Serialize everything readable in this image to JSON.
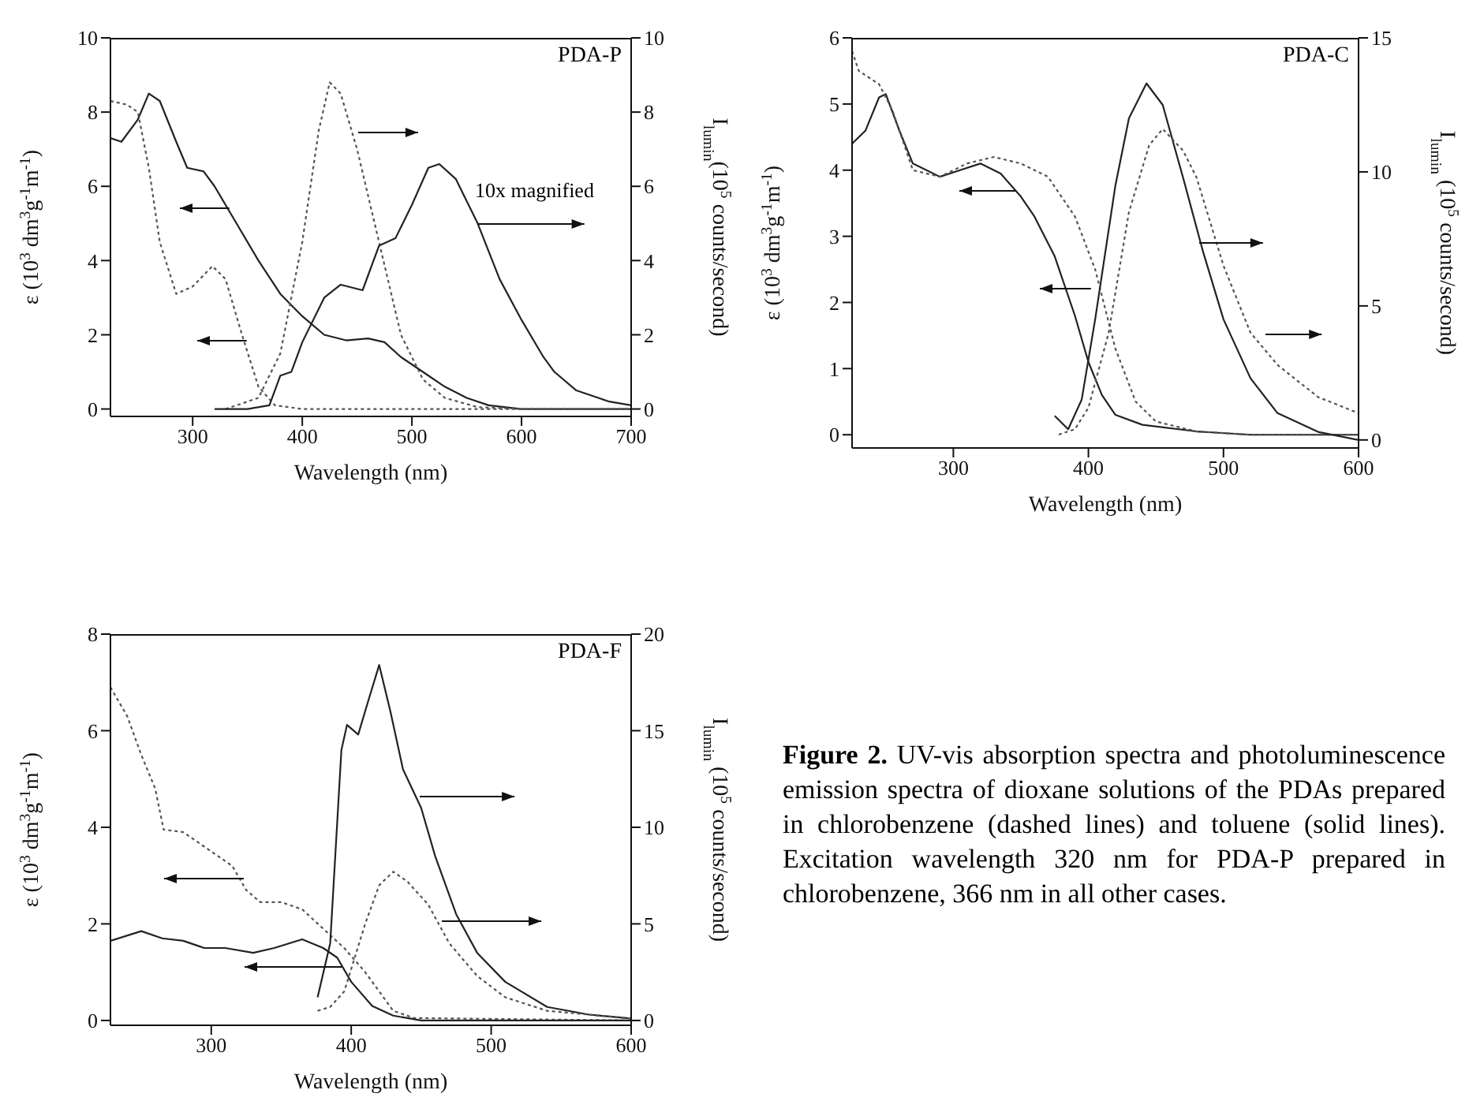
{
  "chart_data": [
    {
      "type": "line",
      "title": "PDA-P",
      "xlabel": "Wavelength (nm)",
      "ylabel": "ε (10$^{3}$ dm$^{3}$g$^{-1}$m$^{-1}$)",
      "y2label": "I$_{lumin}$(10$^{5}$ counts/second)",
      "annotations": [
        "10x magnified"
      ],
      "xlim": [
        225,
        700
      ],
      "xticks": [
        300,
        400,
        500,
        600,
        700
      ],
      "ylim": [
        -0.2,
        10
      ],
      "yticks": [
        0,
        2,
        4,
        6,
        8,
        10
      ],
      "y2lim": [
        -0.2,
        10
      ],
      "y2ticks": [
        0,
        2,
        4,
        6,
        8,
        10
      ],
      "series": [
        {
          "color": "#222222",
          "line_style": "solid",
          "x": [
            225,
            235,
            250,
            260,
            270,
            285,
            295,
            310,
            320,
            340,
            360,
            380,
            400,
            420,
            440,
            460,
            475,
            490,
            510,
            530,
            550,
            570,
            600,
            700
          ],
          "values": [
            7.3,
            7.2,
            7.8,
            8.5,
            8.3,
            7.2,
            6.5,
            6.4,
            6.0,
            5.0,
            4.0,
            3.1,
            2.5,
            2.0,
            1.85,
            1.9,
            1.8,
            1.4,
            1.0,
            0.6,
            0.3,
            0.1,
            0.0,
            0.0
          ]
        },
        {
          "color": "#555555",
          "line_style": "dotted",
          "x": [
            225,
            240,
            250,
            260,
            270,
            285,
            300,
            318,
            330,
            345,
            360,
            375,
            400,
            700
          ],
          "values": [
            8.3,
            8.2,
            8.0,
            6.5,
            4.5,
            3.1,
            3.3,
            3.85,
            3.5,
            2.0,
            0.6,
            0.1,
            0.0,
            0.0
          ]
        },
        {
          "color": "#555555",
          "line_style": "dotted",
          "axis": "y2",
          "x": [
            330,
            360,
            380,
            400,
            415,
            425,
            435,
            450,
            470,
            490,
            510,
            530,
            560,
            600,
            700
          ],
          "values": [
            0,
            0.3,
            1.5,
            4.5,
            7.5,
            8.8,
            8.5,
            7.0,
            4.5,
            2.0,
            0.8,
            0.3,
            0.05,
            0,
            0
          ]
        },
        {
          "color": "#222222",
          "line_style": "solid",
          "axis": "y2",
          "x": [
            320,
            350,
            370,
            380,
            390,
            400,
            420,
            435,
            455,
            470,
            485,
            500,
            515,
            525,
            540,
            560,
            580,
            600,
            620,
            630,
            650,
            680,
            700
          ],
          "values": [
            0,
            0,
            0.1,
            0.9,
            1.0,
            1.8,
            3.0,
            3.35,
            3.2,
            4.4,
            4.6,
            5.5,
            6.5,
            6.6,
            6.2,
            5.0,
            3.5,
            2.4,
            1.4,
            1.0,
            0.5,
            0.2,
            0.1
          ]
        }
      ]
    },
    {
      "type": "line",
      "title": "PDA-C",
      "xlabel": "Wavelength (nm)",
      "ylabel": "ε (10$^{3}$ dm$^{3}$g$^{-1}$m$^{-1}$)",
      "y2label": "I$_{lumin}$ (10$^{5}$ counts/second)",
      "xlim": [
        225,
        600
      ],
      "xticks": [
        300,
        400,
        500,
        600
      ],
      "ylim": [
        -0.2,
        6
      ],
      "yticks": [
        0,
        1,
        2,
        3,
        4,
        5,
        6
      ],
      "y2lim": [
        -0.3,
        15
      ],
      "y2ticks": [
        0,
        5,
        10,
        15
      ],
      "series": [
        {
          "color": "#222222",
          "line_style": "solid",
          "x": [
            225,
            235,
            245,
            250,
            260,
            270,
            290,
            305,
            320,
            335,
            350,
            360,
            375,
            390,
            400,
            410,
            420,
            440,
            480,
            520,
            600
          ],
          "values": [
            4.4,
            4.6,
            5.1,
            5.15,
            4.6,
            4.1,
            3.9,
            4.0,
            4.1,
            3.95,
            3.6,
            3.3,
            2.7,
            1.8,
            1.1,
            0.6,
            0.3,
            0.15,
            0.05,
            0,
            0
          ]
        },
        {
          "color": "#555555",
          "line_style": "dotted",
          "x": [
            225,
            230,
            245,
            255,
            270,
            290,
            310,
            330,
            350,
            370,
            390,
            405,
            420,
            435,
            450,
            480,
            520,
            600
          ],
          "values": [
            5.8,
            5.5,
            5.3,
            4.9,
            4.0,
            3.9,
            4.1,
            4.2,
            4.1,
            3.9,
            3.3,
            2.5,
            1.3,
            0.5,
            0.2,
            0.05,
            0,
            0
          ]
        },
        {
          "color": "#222222",
          "line_style": "solid",
          "axis": "y2",
          "x": [
            375,
            385,
            395,
            405,
            420,
            430,
            443,
            455,
            470,
            485,
            500,
            520,
            540,
            570,
            600
          ],
          "values": [
            0.9,
            0.4,
            1.5,
            4.5,
            9.5,
            12.0,
            13.3,
            12.5,
            9.8,
            7.0,
            4.5,
            2.3,
            1.0,
            0.3,
            0
          ]
        },
        {
          "color": "#555555",
          "line_style": "dotted",
          "axis": "y2",
          "x": [
            378,
            390,
            400,
            415,
            430,
            445,
            455,
            470,
            480,
            500,
            520,
            540,
            570,
            600
          ],
          "values": [
            0.2,
            0.4,
            1.2,
            4.0,
            8.5,
            11.0,
            11.6,
            10.8,
            9.8,
            6.5,
            4.0,
            2.8,
            1.6,
            1.0
          ]
        }
      ]
    },
    {
      "type": "line",
      "title": "PDA-F",
      "xlabel": "Wavelength (nm)",
      "ylabel": "ε (10$^{3}$ dm$^{3}$g$^{-1}$m$^{-1}$)",
      "y2label": "I$_{lumin}$ (10$^{5}$ counts/second)",
      "xlim": [
        228,
        600
      ],
      "xticks": [
        300,
        400,
        500,
        600
      ],
      "ylim": [
        -0.1,
        8
      ],
      "yticks": [
        0,
        2,
        4,
        6,
        8
      ],
      "y2lim": [
        -0.25,
        20
      ],
      "y2ticks": [
        0,
        5,
        10,
        15,
        20
      ],
      "series": [
        {
          "color": "#555555",
          "line_style": "dotted",
          "x": [
            228,
            240,
            250,
            260,
            266,
            280,
            300,
            315,
            325,
            335,
            350,
            365,
            380,
            395,
            410,
            420,
            430,
            445,
            600
          ],
          "values": [
            6.9,
            6.3,
            5.5,
            4.8,
            3.95,
            3.9,
            3.5,
            3.2,
            2.7,
            2.45,
            2.45,
            2.3,
            1.9,
            1.5,
            1.0,
            0.6,
            0.2,
            0.05,
            0
          ]
        },
        {
          "color": "#222222",
          "line_style": "solid",
          "x": [
            228,
            250,
            265,
            280,
            295,
            310,
            330,
            345,
            365,
            380,
            390,
            400,
            415,
            430,
            450,
            600
          ],
          "values": [
            1.65,
            1.85,
            1.7,
            1.65,
            1.5,
            1.5,
            1.4,
            1.5,
            1.68,
            1.5,
            1.3,
            0.8,
            0.3,
            0.1,
            0.0,
            0
          ]
        },
        {
          "color": "#222222",
          "line_style": "solid",
          "axis": "y2",
          "x": [
            376,
            385,
            393,
            397,
            405,
            412,
            420,
            428,
            437,
            450,
            460,
            475,
            490,
            510,
            540,
            570,
            600
          ],
          "values": [
            1.2,
            4.0,
            14.0,
            15.3,
            14.8,
            16.5,
            18.4,
            16.0,
            13.0,
            11.0,
            8.5,
            5.5,
            3.5,
            2.0,
            0.7,
            0.3,
            0.1
          ]
        },
        {
          "color": "#555555",
          "line_style": "dotted",
          "axis": "y2",
          "x": [
            376,
            385,
            395,
            410,
            420,
            430,
            440,
            455,
            470,
            490,
            510,
            540,
            600
          ],
          "values": [
            0.5,
            0.7,
            1.5,
            5.0,
            7.0,
            7.7,
            7.2,
            6.0,
            4.0,
            2.3,
            1.2,
            0.5,
            0.1
          ]
        }
      ]
    },
    {
      "type": "other",
      "annotations": [
        "Figure 2.",
        "UV-vis absorption spectra and photoluminescence emission spectra of dioxane solutions of the PDAs prepared in chlorobenzene (dashed lines) and toluene (solid lines). Excitation wavelength 320 nm for PDA-P prepared in chlorobenzene, 366 nm in all other cases."
      ]
    }
  ]
}
